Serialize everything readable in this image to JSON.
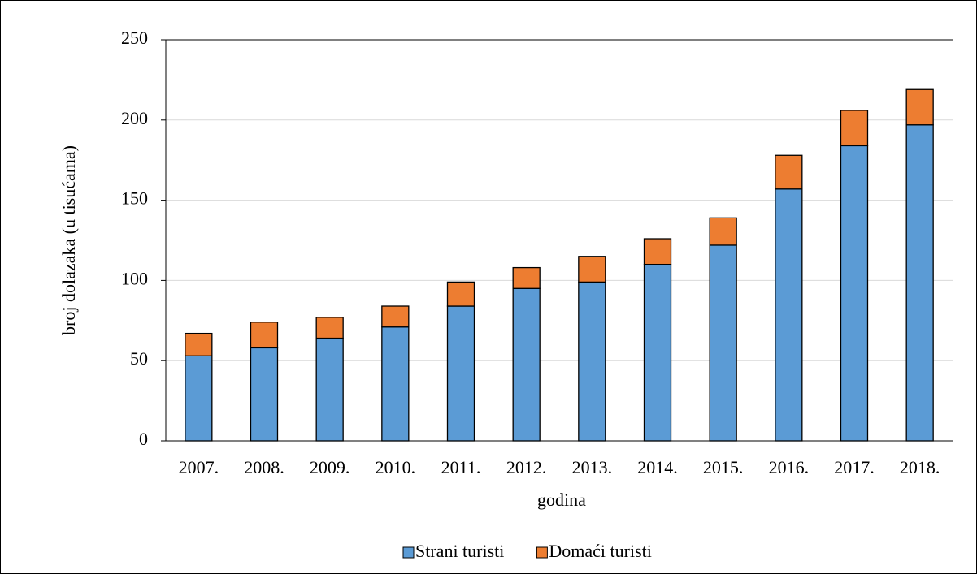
{
  "chart_data": {
    "type": "bar",
    "stacked": true,
    "x_label": "godina",
    "y_label": "broj dolazaka (u tisućama)",
    "categories": [
      "2007.",
      "2008.",
      "2009.",
      "2010.",
      "2011.",
      "2012.",
      "2013.",
      "2014.",
      "2015.",
      "2016.",
      "2017.",
      "2018."
    ],
    "series": [
      {
        "name": "Strani turisti",
        "color": "#5b9bd5",
        "values": [
          53,
          58,
          64,
          71,
          84,
          95,
          99,
          110,
          122,
          157,
          184,
          197
        ]
      },
      {
        "name": "Domaći turisti",
        "color": "#ed7d31",
        "values": [
          14,
          16,
          13,
          13,
          15,
          13,
          16,
          16,
          17,
          21,
          22,
          22
        ]
      }
    ],
    "ylim": [
      0,
      250
    ],
    "yticks": [
      0,
      50,
      100,
      150,
      200,
      250
    ],
    "grid": true,
    "legend": "bottom"
  }
}
